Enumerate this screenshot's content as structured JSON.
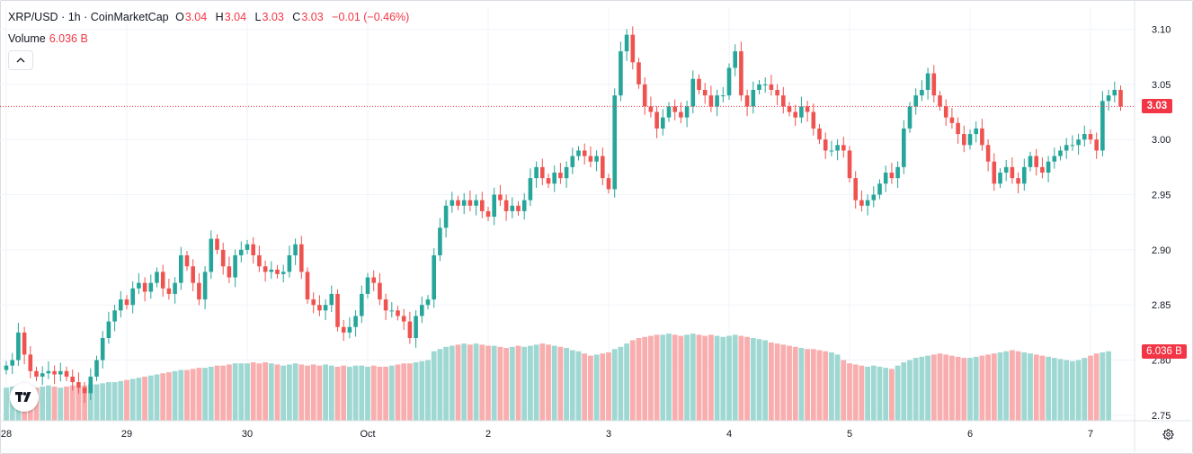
{
  "legend": {
    "symbol": "XRP/USD",
    "separator": "·",
    "interval": "1h",
    "source": "CoinMarketCap",
    "open_label": "O",
    "open": "3.04",
    "high_label": "H",
    "high": "3.04",
    "low_label": "L",
    "low": "3.03",
    "close_label": "C",
    "close": "3.03",
    "change": "−0.01 (−0.46%)"
  },
  "volume_legend": {
    "label": "Volume",
    "value": "6.036 B"
  },
  "current_price_label": "3.03",
  "current_volume_label": "6.036 B",
  "colors": {
    "up": "#26a69a",
    "down": "#ef5350",
    "vol_up": "#9fd8d2",
    "vol_down": "#f8aeae",
    "price_line": "#f23645"
  },
  "icons": {
    "collapse": "chevron-up-icon",
    "logo": "tradingview-logo-icon",
    "settings": "gear-icon"
  },
  "chart_data": {
    "type": "candlestick",
    "title": "XRP/USD · 1h · CoinMarketCap",
    "y_ticks": [
      "3.10",
      "3.05",
      "3.00",
      "2.95",
      "2.90",
      "2.85",
      "2.80",
      "2.75"
    ],
    "ylim": [
      2.745,
      3.12
    ],
    "x_ticks": [
      {
        "label": "28",
        "bar": 0
      },
      {
        "label": "29",
        "bar": 20
      },
      {
        "label": "30",
        "bar": 40
      },
      {
        "label": "Oct",
        "bar": 60
      },
      {
        "label": "2",
        "bar": 80
      },
      {
        "label": "3",
        "bar": 100
      },
      {
        "label": "4",
        "bar": 120
      },
      {
        "label": "5",
        "bar": 140
      },
      {
        "label": "6",
        "bar": 160
      },
      {
        "label": "7",
        "bar": 180
      }
    ],
    "current_price": 3.03,
    "close_series": [
      2.795,
      2.8,
      2.825,
      2.805,
      2.79,
      2.785,
      2.788,
      2.79,
      2.787,
      2.79,
      2.785,
      2.78,
      2.775,
      2.77,
      2.785,
      2.8,
      2.82,
      2.835,
      2.845,
      2.855,
      2.85,
      2.865,
      2.87,
      2.862,
      2.87,
      2.88,
      2.865,
      2.86,
      2.87,
      2.895,
      2.885,
      2.87,
      2.855,
      2.88,
      2.91,
      2.9,
      2.885,
      2.875,
      2.895,
      2.9,
      2.905,
      2.895,
      2.885,
      2.88,
      2.882,
      2.878,
      2.88,
      2.895,
      2.905,
      2.88,
      2.855,
      2.85,
      2.845,
      2.85,
      2.86,
      2.83,
      2.825,
      2.83,
      2.84,
      2.86,
      2.875,
      2.87,
      2.855,
      2.845,
      2.845,
      2.84,
      2.835,
      2.82,
      2.84,
      2.85,
      2.855,
      2.895,
      2.92,
      2.94,
      2.945,
      2.94,
      2.945,
      2.94,
      2.945,
      2.935,
      2.93,
      2.95,
      2.945,
      2.935,
      2.94,
      2.935,
      2.945,
      2.965,
      2.975,
      2.965,
      2.96,
      2.97,
      2.965,
      2.975,
      2.985,
      2.99,
      2.985,
      2.98,
      2.985,
      2.965,
      2.955,
      3.04,
      3.08,
      3.095,
      3.07,
      3.05,
      3.03,
      3.025,
      3.01,
      3.02,
      3.03,
      3.025,
      3.02,
      3.03,
      3.055,
      3.045,
      3.04,
      3.03,
      3.04,
      3.04,
      3.065,
      3.08,
      3.04,
      3.03,
      3.045,
      3.05,
      3.05,
      3.045,
      3.04,
      3.03,
      3.025,
      3.02,
      3.03,
      3.025,
      3.01,
      3.0,
      2.99,
      2.99,
      2.995,
      2.99,
      2.965,
      2.945,
      2.94,
      2.945,
      2.95,
      2.96,
      2.97,
      2.965,
      2.975,
      3.01,
      3.03,
      3.04,
      3.045,
      3.06,
      3.04,
      3.03,
      3.02,
      3.015,
      3.005,
      2.995,
      3.005,
      3.01,
      2.995,
      2.98,
      2.96,
      2.97,
      2.975,
      2.965,
      2.96,
      2.975,
      2.985,
      2.975,
      2.97,
      2.98,
      2.985,
      2.99,
      2.995,
      2.995,
      3.0,
      3.005,
      3.0,
      2.99,
      3.035,
      3.04,
      3.045,
      3.03
    ],
    "volume_series": [
      2.775,
      2.776,
      2.777,
      2.778,
      2.776,
      2.775,
      2.776,
      2.777,
      2.776,
      2.775,
      2.776,
      2.777,
      2.776,
      2.777,
      2.778,
      2.778,
      2.779,
      2.78,
      2.78,
      2.781,
      2.782,
      2.783,
      2.784,
      2.785,
      2.786,
      2.787,
      2.788,
      2.789,
      2.79,
      2.791,
      2.791,
      2.792,
      2.793,
      2.793,
      2.794,
      2.795,
      2.795,
      2.796,
      2.797,
      2.797,
      2.797,
      2.798,
      2.797,
      2.798,
      2.797,
      2.796,
      2.795,
      2.796,
      2.797,
      2.796,
      2.795,
      2.796,
      2.795,
      2.796,
      2.795,
      2.794,
      2.795,
      2.794,
      2.795,
      2.795,
      2.794,
      2.795,
      2.794,
      2.794,
      2.795,
      2.796,
      2.797,
      2.797,
      2.798,
      2.799,
      2.8,
      2.808,
      2.81,
      2.812,
      2.813,
      2.814,
      2.815,
      2.814,
      2.815,
      2.814,
      2.813,
      2.813,
      2.812,
      2.811,
      2.812,
      2.813,
      2.812,
      2.813,
      2.814,
      2.815,
      2.814,
      2.813,
      2.812,
      2.811,
      2.809,
      2.808,
      2.806,
      2.804,
      2.805,
      2.806,
      2.807,
      2.81,
      2.812,
      2.815,
      2.818,
      2.82,
      2.821,
      2.822,
      2.823,
      2.823,
      2.824,
      2.823,
      2.822,
      2.823,
      2.824,
      2.823,
      2.822,
      2.823,
      2.822,
      2.821,
      2.822,
      2.823,
      2.822,
      2.821,
      2.82,
      2.819,
      2.818,
      2.816,
      2.815,
      2.814,
      2.813,
      2.812,
      2.811,
      2.81,
      2.81,
      2.809,
      2.808,
      2.807,
      2.805,
      2.8,
      2.797,
      2.796,
      2.795,
      2.794,
      2.795,
      2.794,
      2.793,
      2.792,
      2.795,
      2.798,
      2.8,
      2.802,
      2.803,
      2.804,
      2.805,
      2.806,
      2.805,
      2.804,
      2.803,
      2.802,
      2.802,
      2.803,
      2.804,
      2.805,
      2.806,
      2.807,
      2.808,
      2.809,
      2.808,
      2.807,
      2.806,
      2.805,
      2.804,
      2.803,
      2.802,
      2.801,
      2.8,
      2.799,
      2.8,
      2.802,
      2.804,
      2.806,
      2.807,
      2.808
    ]
  }
}
